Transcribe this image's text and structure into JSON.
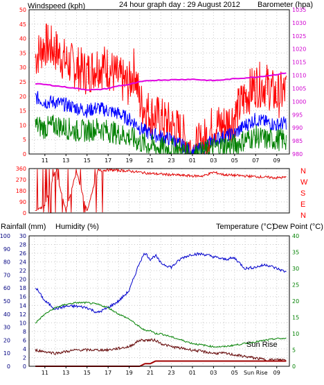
{
  "colors": {
    "wind_gust": "#ff0000",
    "wind_avg": "#0000ff",
    "wind_min": "#008000",
    "barometer": "#e000e0",
    "direction": "#e00000",
    "humidity": "#0000cc",
    "temperature": "#008000",
    "dewpoint": "#600000",
    "rain": "#a00000",
    "left_axis_red": "#ff0000",
    "right_axis_magenta": "#d000d0",
    "bottom_left_axis": "#000080",
    "bottom_right_axis": "#008000"
  },
  "header": {
    "left_label": "Windspeed (kph)",
    "title": "24 hour graph day : 29 August 2012",
    "right_label": "Barometer (hpa)"
  },
  "bottom_header": {
    "rain_label": "Rainfall (mm)",
    "humidity_label": "Humidity (%)",
    "temp_label": "Temperature (°C)",
    "dew_label": "Dew Point (°C)"
  },
  "annotation": "Sun Rise",
  "compass": [
    "N",
    "W",
    "S",
    "E",
    "N"
  ],
  "chart_data": [
    {
      "type": "line",
      "title": "24 hour graph day : 29 August 2012",
      "x_ticks": [
        "11",
        "13",
        "15",
        "17",
        "19",
        "21",
        "23",
        "01",
        "03",
        "05",
        "07",
        "09"
      ],
      "ylabel": "Windspeed (kph)",
      "ylim": [
        0,
        50
      ],
      "yticks": [
        "0",
        "5",
        "10",
        "15",
        "20",
        "25",
        "30",
        "35",
        "40",
        "45",
        "50"
      ],
      "y2label": "Barometer (hpa)",
      "y2lim": [
        980,
        1035
      ],
      "y2ticks": [
        "980",
        "985",
        "990",
        "995",
        "1000",
        "1005",
        "1010",
        "1015",
        "1020",
        "1025",
        "1030",
        "1035"
      ],
      "x_hours": [
        10,
        11,
        12,
        13,
        14,
        15,
        16,
        17,
        18,
        19,
        19.5,
        20,
        21,
        22,
        23,
        24,
        25,
        26,
        27,
        28,
        29,
        30,
        31,
        32,
        33,
        34
      ],
      "series": [
        {
          "key": "gust",
          "axis": "left",
          "values": [
            33,
            38,
            36,
            32,
            30,
            28,
            31,
            30,
            26,
            24,
            30,
            18,
            14,
            12,
            10,
            7,
            1,
            4,
            10,
            10,
            13,
            20,
            24,
            24,
            20,
            22
          ]
        },
        {
          "key": "average",
          "axis": "left",
          "values": [
            20,
            18,
            18,
            17,
            16,
            15,
            16,
            15,
            14,
            12,
            11,
            9,
            7,
            6,
            5,
            3,
            0.5,
            2,
            5,
            6,
            7,
            10,
            12,
            11,
            10,
            11
          ]
        },
        {
          "key": "minimum",
          "axis": "left",
          "values": [
            10,
            9,
            10,
            9,
            8,
            8,
            9,
            8,
            7,
            6,
            5,
            4,
            3,
            2,
            2,
            1,
            0,
            0.5,
            2,
            3,
            3,
            5,
            6,
            5,
            5,
            5
          ]
        },
        {
          "key": "barometer",
          "axis": "right",
          "values": [
            1006.8,
            1006.5,
            1006,
            1005.5,
            1005,
            1004.5,
            1004.5,
            1005,
            1006,
            1006.5,
            1007,
            1007.5,
            1008,
            1008.2,
            1008.3,
            1008.4,
            1008.5,
            1008.2,
            1008,
            1008.3,
            1008.7,
            1009,
            1009.3,
            1009.8,
            1010.3,
            1011
          ]
        }
      ]
    },
    {
      "type": "line",
      "x_ticks": [
        "11",
        "13",
        "15",
        "17",
        "19",
        "21",
        "23",
        "01",
        "03",
        "05",
        "07",
        "09"
      ],
      "ylim": [
        0,
        360
      ],
      "yticks": [
        "0",
        "90",
        "180",
        "270",
        "360"
      ],
      "x_hours": [
        10,
        11,
        12,
        13,
        14,
        15,
        16,
        17,
        18,
        19,
        20,
        21,
        22,
        23,
        24,
        25,
        26,
        27,
        28,
        29,
        30,
        31,
        32,
        33,
        34
      ],
      "series": [
        {
          "key": "direction",
          "values": [
            10,
            60,
            350,
            20,
            340,
            10,
            340,
            350,
            345,
            340,
            330,
            320,
            315,
            310,
            305,
            300,
            300,
            330,
            310,
            305,
            300,
            295,
            290,
            285,
            290
          ]
        }
      ]
    },
    {
      "type": "line",
      "x_ticks": [
        "11",
        "13",
        "15",
        "17",
        "19",
        "21",
        "23",
        "01",
        "03",
        "05",
        "Sun Rise",
        "09"
      ],
      "ylabel": "Rainfall (mm) / Humidity (%)",
      "y_rain_ticks": [
        "0",
        "10",
        "20",
        "30",
        "40",
        "50",
        "60",
        "70",
        "80",
        "90",
        "100"
      ],
      "ylim_rain": [
        0,
        100
      ],
      "y_mid_ticks": [
        "0",
        "2",
        "4",
        "6",
        "8",
        "10",
        "12",
        "14",
        "16",
        "18",
        "20",
        "22",
        "24",
        "26",
        "28",
        "30"
      ],
      "ylim_mid": [
        0,
        30
      ],
      "y2label": "Temperature (°C) / Dew Point (°C)",
      "y2lim": [
        0,
        40
      ],
      "y2ticks": [
        "0",
        "5",
        "10",
        "15",
        "20",
        "25",
        "30",
        "35",
        "40"
      ],
      "x_hours": [
        10,
        11,
        12,
        13,
        14,
        15,
        16,
        17,
        18,
        19,
        20,
        20.5,
        21,
        21.5,
        22,
        23,
        24,
        25,
        26,
        27,
        28,
        29,
        30,
        31,
        32,
        33,
        34
      ],
      "series": [
        {
          "key": "humidity",
          "axis": "rain",
          "values": [
            62,
            50,
            44,
            46,
            46,
            45,
            41,
            45,
            50,
            58,
            80,
            87,
            82,
            85,
            79,
            76,
            83,
            86,
            86,
            84,
            82,
            83,
            75,
            76,
            78,
            75,
            72
          ]
        },
        {
          "key": "temperature",
          "axis": "right",
          "values": [
            13,
            16,
            18,
            19,
            19.5,
            19.5,
            19,
            18,
            16,
            14.5,
            12,
            11,
            11,
            10,
            10,
            9,
            8,
            7,
            6.5,
            6,
            6,
            6.5,
            7,
            7.5,
            8,
            8.5,
            8.5
          ]
        },
        {
          "key": "dewpoint",
          "axis": "right",
          "values": [
            5,
            4.5,
            4,
            4.5,
            5,
            5,
            5,
            5,
            5.5,
            6,
            8,
            8,
            8,
            8,
            7,
            6,
            5.5,
            5,
            4.5,
            4,
            4,
            3.5,
            3,
            2.5,
            2,
            2,
            2
          ]
        },
        {
          "key": "rainfall",
          "axis": "rain",
          "values": [
            0,
            0,
            0,
            0,
            0,
            0,
            0,
            0,
            0,
            0,
            0,
            2,
            2,
            4,
            4,
            4,
            4,
            4,
            4,
            4,
            4,
            4,
            4,
            4,
            4,
            4,
            4
          ]
        }
      ]
    }
  ]
}
